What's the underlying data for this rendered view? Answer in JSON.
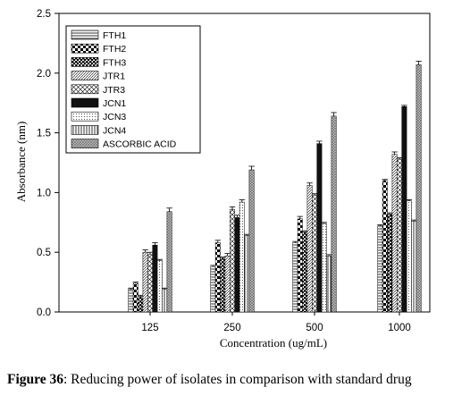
{
  "chart_data": {
    "type": "bar",
    "title": "",
    "xlabel": "Concentration (ug/mL)",
    "ylabel": "Absorbance (nm)",
    "ylim": [
      0,
      2.5
    ],
    "yticks": [
      "0.0",
      "0.5",
      "1.0",
      "1.5",
      "2.0",
      "2.5"
    ],
    "categories": [
      "125",
      "250",
      "500",
      "1000"
    ],
    "legend_position": "top-left",
    "error_bars": true,
    "series": [
      {
        "name": "FTH1",
        "pattern": "hlines",
        "values": [
          0.19,
          0.38,
          0.58,
          0.72
        ],
        "errors": [
          0.01,
          0.01,
          0.01,
          0.01
        ]
      },
      {
        "name": "FTH2",
        "pattern": "checker",
        "values": [
          0.24,
          0.58,
          0.78,
          1.1
        ],
        "errors": [
          0.01,
          0.02,
          0.02,
          0.01
        ]
      },
      {
        "name": "FTH3",
        "pattern": "dots-bold",
        "values": [
          0.13,
          0.45,
          0.67,
          0.82
        ],
        "errors": [
          0.01,
          0.01,
          0.01,
          0.01
        ]
      },
      {
        "name": "JTR1",
        "pattern": "diag-fine",
        "values": [
          0.5,
          0.47,
          1.06,
          1.32
        ],
        "errors": [
          0.02,
          0.02,
          0.02,
          0.02
        ]
      },
      {
        "name": "JTR3",
        "pattern": "crosshatch",
        "values": [
          0.48,
          0.86,
          0.98,
          1.28
        ],
        "errors": [
          0.02,
          0.02,
          0.01,
          0.01
        ]
      },
      {
        "name": "JCN1",
        "pattern": "solid-black",
        "values": [
          0.56,
          0.79,
          1.41,
          1.72
        ],
        "errors": [
          0.02,
          0.02,
          0.02,
          0.01
        ]
      },
      {
        "name": "JCN3",
        "pattern": "dots-light",
        "values": [
          0.43,
          0.92,
          0.74,
          0.93
        ],
        "errors": [
          0.01,
          0.02,
          0.01,
          0.01
        ]
      },
      {
        "name": "JCN4",
        "pattern": "vlines",
        "values": [
          0.19,
          0.64,
          0.47,
          0.76
        ],
        "errors": [
          0.01,
          0.01,
          0.01,
          0.01
        ]
      },
      {
        "name": "ASCORBIC ACID",
        "pattern": "grey-cross",
        "values": [
          0.84,
          1.19,
          1.64,
          2.07
        ],
        "errors": [
          0.03,
          0.03,
          0.03,
          0.03
        ]
      }
    ]
  },
  "caption": {
    "label": "Figure 36",
    "text": ": Reducing power of isolates in comparison with standard drug"
  }
}
